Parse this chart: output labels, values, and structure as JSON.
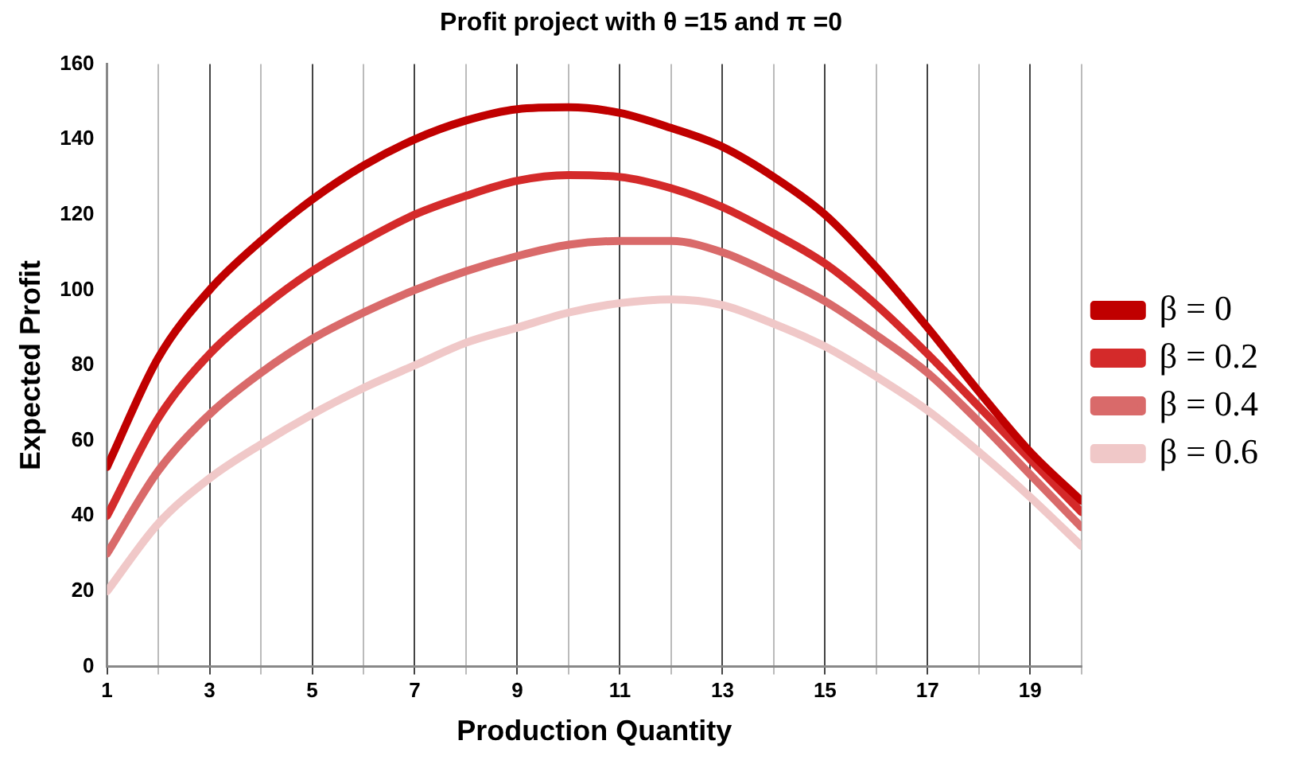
{
  "chart_data": {
    "type": "line",
    "title": "Profit project with θ =15 and π =0",
    "xlabel": "Production Quantity",
    "ylabel": "Expected Profit",
    "x": [
      1,
      2,
      3,
      4,
      5,
      6,
      7,
      8,
      9,
      10,
      11,
      12,
      13,
      14,
      15,
      16,
      17,
      18,
      19,
      20
    ],
    "series": [
      {
        "name": "β = 0",
        "color": "#c00000",
        "values": [
          53,
          82,
          100,
          113,
          124,
          133,
          140,
          145,
          148,
          148.5,
          147,
          143,
          138,
          130,
          120,
          106,
          90,
          73,
          57,
          44
        ]
      },
      {
        "name": "β = 0.2",
        "color": "#d42a2a",
        "values": [
          40,
          66,
          83,
          95,
          105,
          113,
          120,
          125,
          129,
          130.5,
          130,
          127,
          122,
          115,
          107,
          96,
          83,
          69,
          55,
          41
        ]
      },
      {
        "name": "β = 0.4",
        "color": "#d96a6a",
        "values": [
          30,
          52,
          67,
          78,
          87,
          94,
          100,
          105,
          109,
          112,
          113,
          113,
          110,
          104,
          97,
          88,
          78,
          65,
          51,
          37
        ]
      },
      {
        "name": "β = 0.6",
        "color": "#f0c8c8",
        "values": [
          20,
          38,
          50,
          59,
          67,
          74,
          80,
          86,
          90,
          94,
          96.5,
          97.5,
          96,
          91,
          85,
          77,
          68,
          57,
          45,
          32
        ]
      }
    ],
    "xlim": [
      1,
      20
    ],
    "xticks": [
      1,
      {
        "value": 2,
        "label": null
      },
      3,
      {
        "value": 4,
        "label": null
      },
      5,
      {
        "value": 6,
        "label": null
      },
      7,
      {
        "value": 8,
        "label": null
      },
      9,
      {
        "value": 10,
        "label": null
      },
      11,
      {
        "value": 12,
        "label": null
      },
      13,
      {
        "value": 14,
        "label": null
      },
      15,
      {
        "value": 16,
        "label": null
      },
      17,
      {
        "value": 18,
        "label": null
      },
      19,
      {
        "value": 20,
        "label": null
      }
    ],
    "ylim": [
      0,
      160
    ],
    "yticks": [
      0,
      20,
      40,
      60,
      80,
      100,
      120,
      140,
      160
    ],
    "grid": "x",
    "legend": "right",
    "marker": "none",
    "line_style": "solid"
  }
}
